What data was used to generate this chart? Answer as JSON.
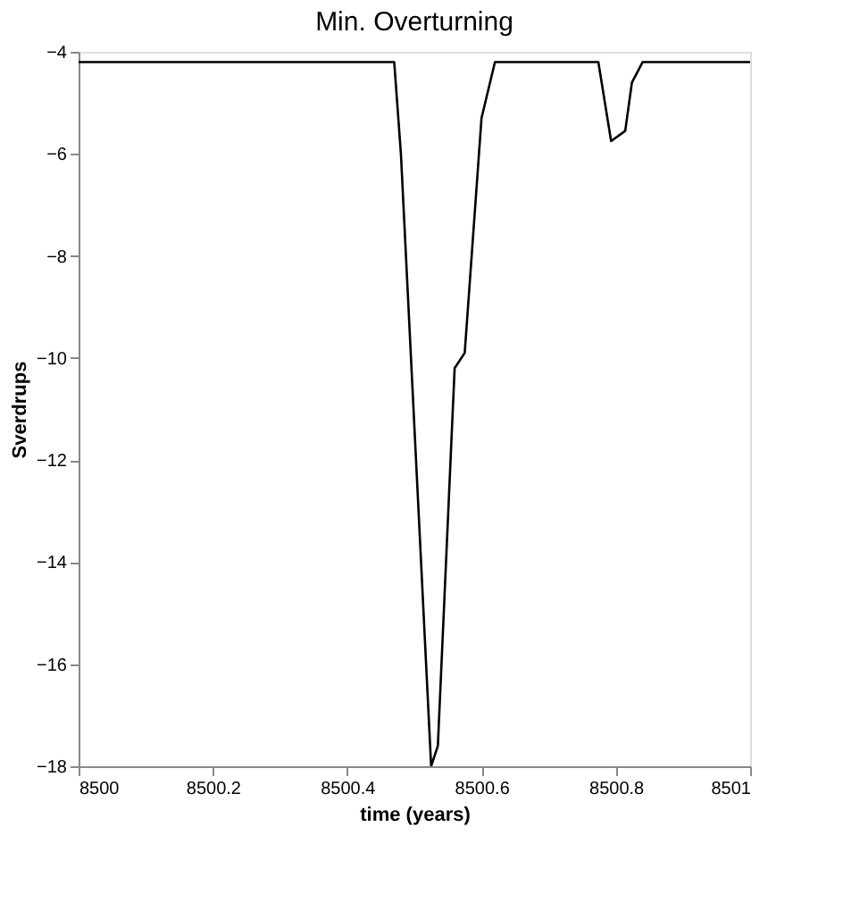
{
  "chart_data": {
    "type": "line",
    "title": "Min. Overturning",
    "xlabel": "time (years)",
    "ylabel": "Sverdrups",
    "x": [
      8500,
      8500.47,
      8500.48,
      8500.525,
      8500.535,
      8500.56,
      8500.575,
      8500.6,
      8500.62,
      8500.774,
      8500.793,
      8500.814,
      8500.824,
      8500.84,
      8501
    ],
    "series": [
      {
        "color": "#000000",
        "values": [
          -4.2,
          -4.2,
          -6,
          -18,
          -17.6,
          -10.2,
          -9.9,
          -5.3,
          -4.2,
          -4.2,
          -5.75,
          -5.55,
          -4.6,
          -4.2,
          -4.2
        ]
      }
    ],
    "xlim": [
      8500,
      8501
    ],
    "xticks": [
      8500,
      8500.2,
      8500.4,
      8500.6,
      8500.8,
      8501
    ],
    "ylim": [
      -18,
      -4
    ],
    "yticks": [
      -18,
      -16,
      -14,
      -12,
      -10,
      -8,
      -6,
      -4
    ],
    "grid": false,
    "legend": false,
    "marker": "none",
    "line_style": "solid"
  }
}
